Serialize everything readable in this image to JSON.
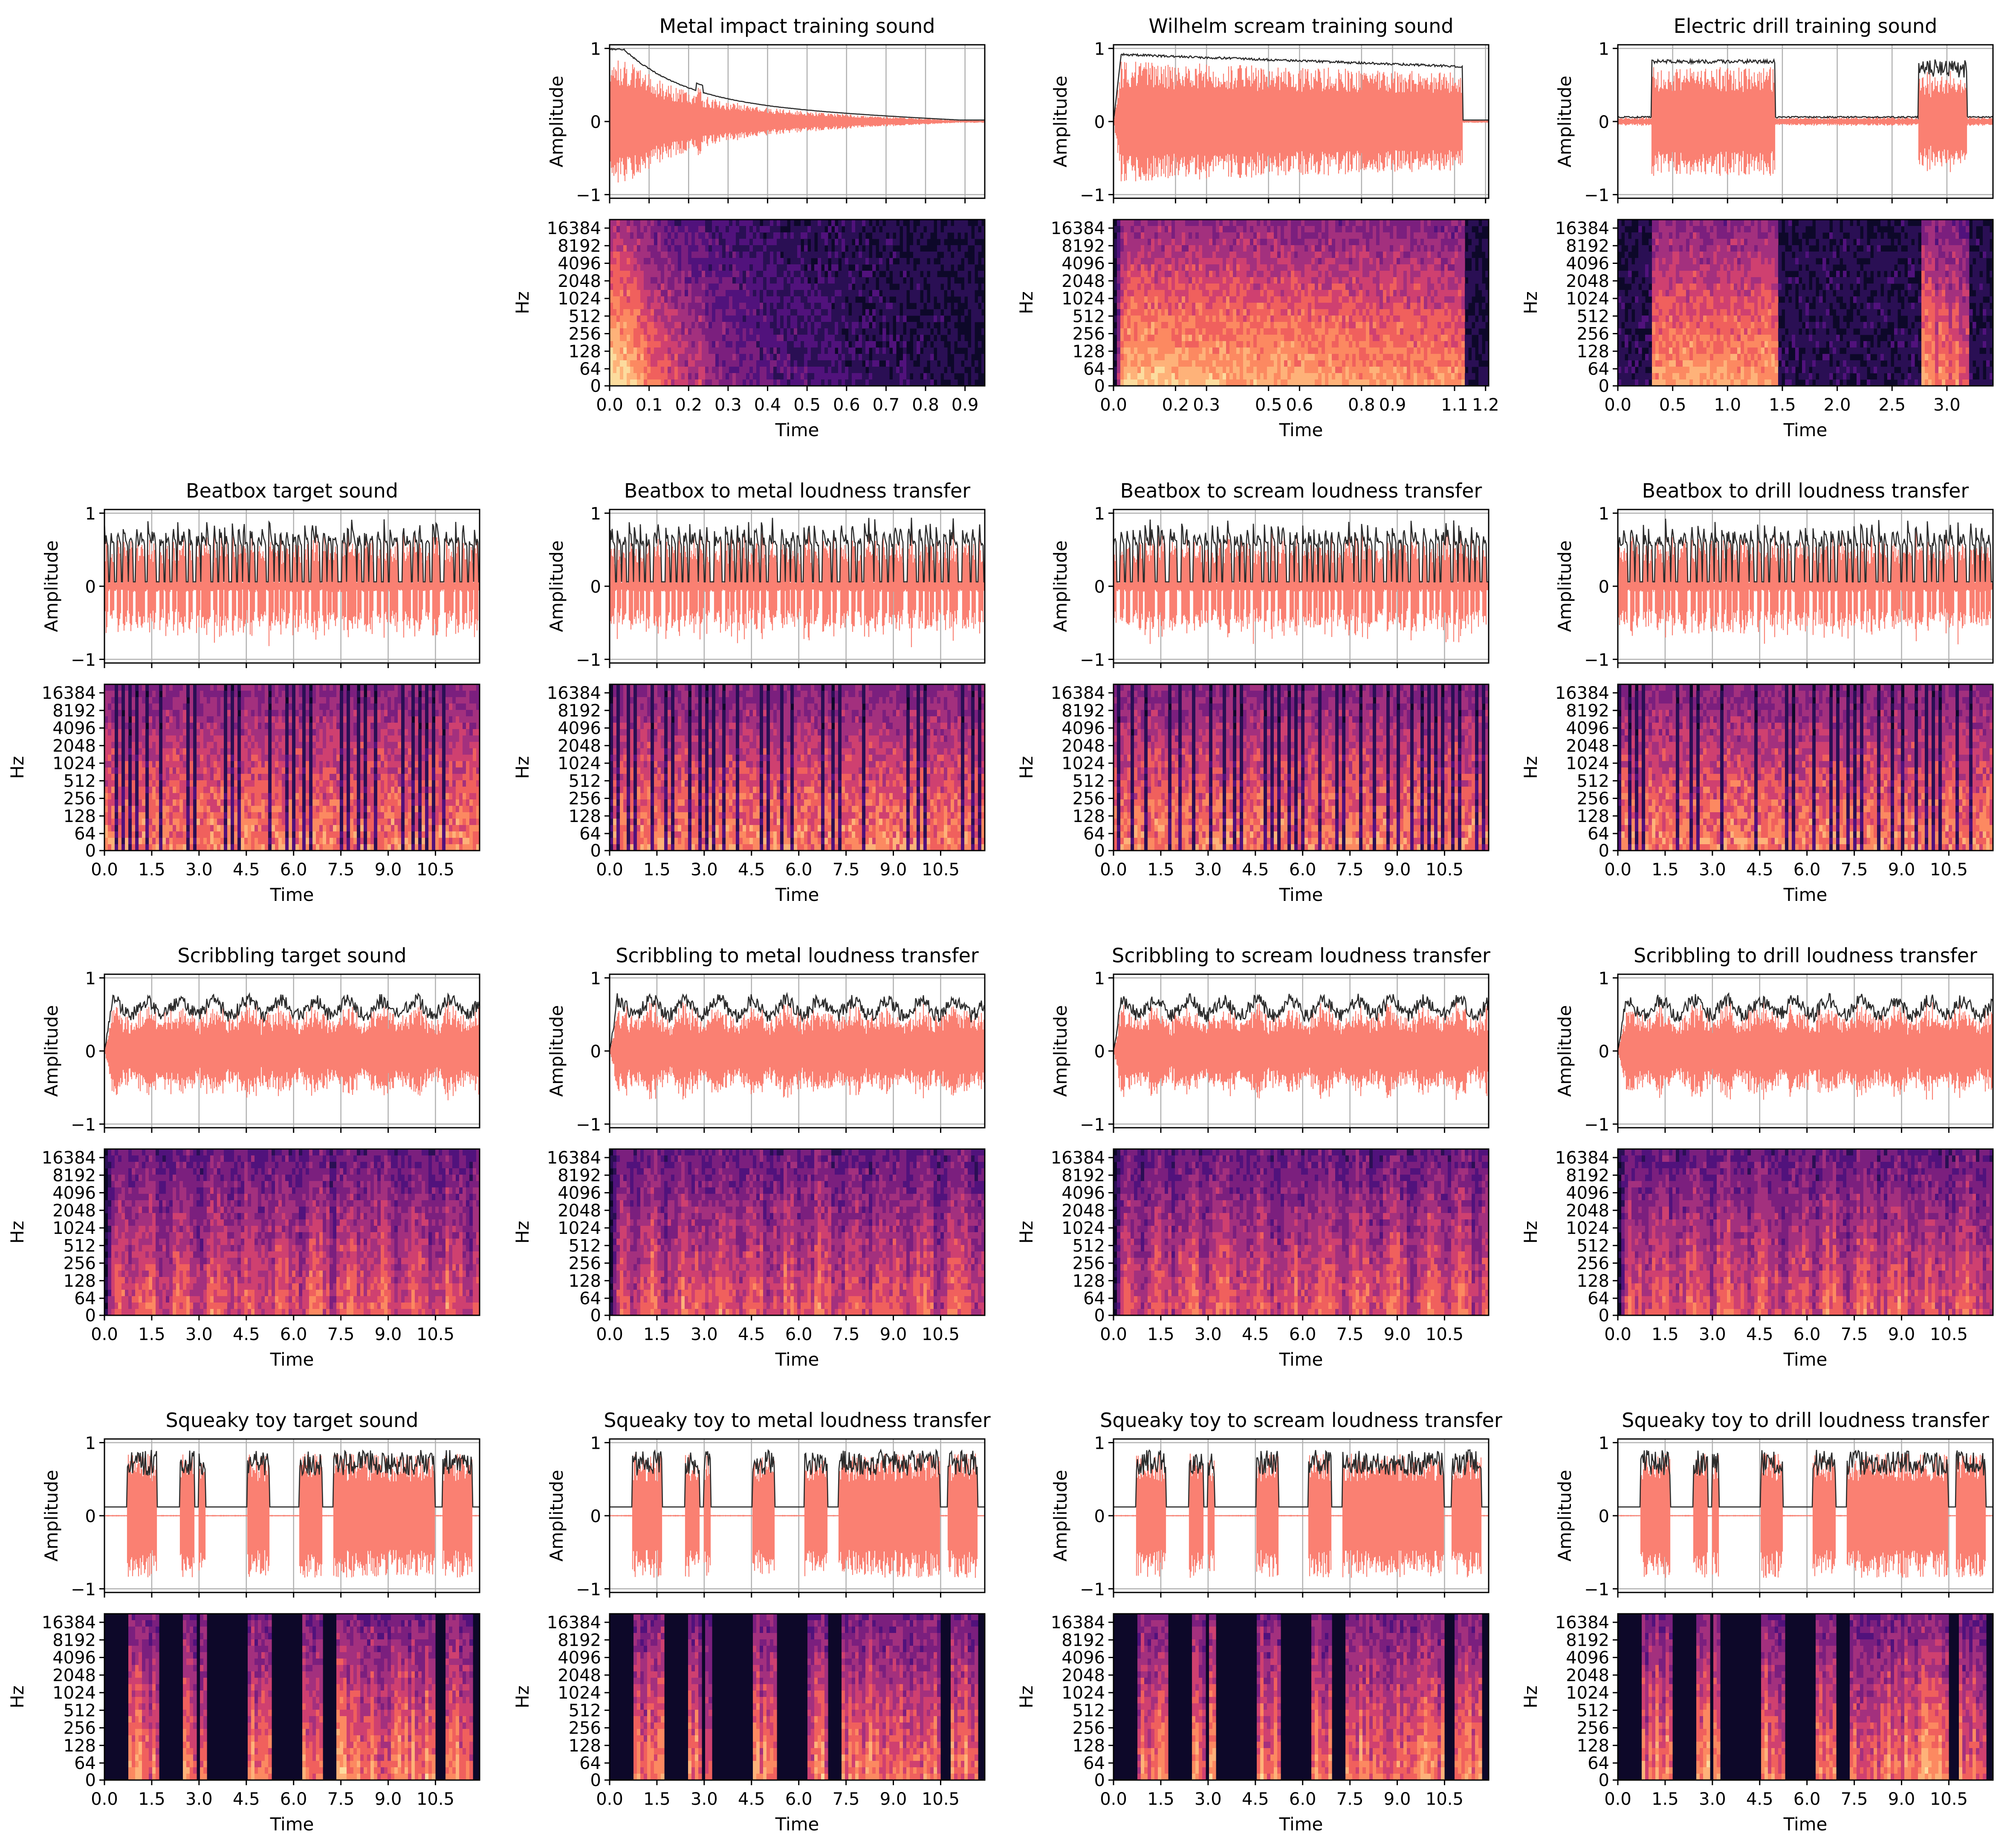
{
  "figure": {
    "waveform_color": "#fa8072",
    "envelope_color": "#2b2b2b",
    "spectrogram_colormap": "magma"
  },
  "chart_data": [
    {
      "title": "Metal impact training sound",
      "type": "line",
      "wave_kind": "metal",
      "duration": 0.95,
      "xticks": [
        "0.0",
        "0.1",
        "0.2",
        "0.3",
        "0.4",
        "0.5",
        "0.6",
        "0.7",
        "0.8",
        "0.9"
      ],
      "ylabel": "Amplitude",
      "yticks": [
        "1",
        "0",
        "−1"
      ],
      "ylim": [
        -1.05,
        1.05
      ],
      "spec_ylabel": "Hz",
      "spec_yticks": [
        "16384",
        "8192",
        "4096",
        "2048",
        "1024",
        "512",
        "256",
        "128",
        "64",
        "0"
      ],
      "xlabel": "Time",
      "grid": true
    },
    {
      "title": "Wilhelm scream training sound",
      "type": "line",
      "wave_kind": "scream",
      "duration": 1.21,
      "xticks": [
        "0.0",
        "0.2",
        "0.3",
        "0.5",
        "0.6",
        "0.8",
        "0.9",
        "1.1",
        "1.2"
      ],
      "ylabel": "Amplitude",
      "yticks": [
        "1",
        "0",
        "−1"
      ],
      "ylim": [
        -1.05,
        1.05
      ],
      "spec_ylabel": "Hz",
      "spec_yticks": [
        "16384",
        "8192",
        "4096",
        "2048",
        "1024",
        "512",
        "256",
        "128",
        "64",
        "0"
      ],
      "xlabel": "Time",
      "grid": true
    },
    {
      "title": "Electric drill training sound",
      "type": "line",
      "wave_kind": "drill",
      "duration": 3.42,
      "xticks": [
        "0.0",
        "0.5",
        "1.0",
        "1.5",
        "2.0",
        "2.5",
        "3.0"
      ],
      "ylabel": "Amplitude",
      "yticks": [
        "1",
        "0",
        "−1"
      ],
      "ylim": [
        -1.05,
        1.05
      ],
      "spec_ylabel": "Hz",
      "spec_yticks": [
        "16384",
        "8192",
        "4096",
        "2048",
        "1024",
        "512",
        "256",
        "128",
        "64",
        "0"
      ],
      "xlabel": "Time",
      "grid": true
    },
    {
      "title": "Beatbox target sound",
      "type": "line",
      "wave_kind": "beatbox",
      "duration": 11.9,
      "xticks": [
        "0.0",
        "1.5",
        "3.0",
        "4.5",
        "6.0",
        "7.5",
        "9.0",
        "10.5"
      ],
      "ylabel": "Amplitude",
      "yticks": [
        "1",
        "0",
        "−1"
      ],
      "ylim": [
        -1.05,
        1.05
      ],
      "spec_ylabel": "Hz",
      "spec_yticks": [
        "16384",
        "8192",
        "4096",
        "2048",
        "1024",
        "512",
        "256",
        "128",
        "64",
        "0"
      ],
      "xlabel": "Time",
      "grid": true
    },
    {
      "title": "Beatbox to metal loudness transfer",
      "type": "line",
      "wave_kind": "beatbox",
      "duration": 11.9,
      "xticks": [
        "0.0",
        "1.5",
        "3.0",
        "4.5",
        "6.0",
        "7.5",
        "9.0",
        "10.5"
      ],
      "ylabel": "Amplitude",
      "yticks": [
        "1",
        "0",
        "−1"
      ],
      "ylim": [
        -1.05,
        1.05
      ],
      "spec_ylabel": "Hz",
      "spec_yticks": [
        "16384",
        "8192",
        "4096",
        "2048",
        "1024",
        "512",
        "256",
        "128",
        "64",
        "0"
      ],
      "xlabel": "Time",
      "grid": true
    },
    {
      "title": "Beatbox to scream loudness transfer",
      "type": "line",
      "wave_kind": "beatbox",
      "duration": 11.9,
      "xticks": [
        "0.0",
        "1.5",
        "3.0",
        "4.5",
        "6.0",
        "7.5",
        "9.0",
        "10.5"
      ],
      "ylabel": "Amplitude",
      "yticks": [
        "1",
        "0",
        "−1"
      ],
      "ylim": [
        -1.05,
        1.05
      ],
      "spec_ylabel": "Hz",
      "spec_yticks": [
        "16384",
        "8192",
        "4096",
        "2048",
        "1024",
        "512",
        "256",
        "128",
        "64",
        "0"
      ],
      "xlabel": "Time",
      "grid": true
    },
    {
      "title": "Beatbox to drill loudness transfer",
      "type": "line",
      "wave_kind": "beatbox",
      "duration": 11.9,
      "xticks": [
        "0.0",
        "1.5",
        "3.0",
        "4.5",
        "6.0",
        "7.5",
        "9.0",
        "10.5"
      ],
      "ylabel": "Amplitude",
      "yticks": [
        "1",
        "0",
        "−1"
      ],
      "ylim": [
        -1.05,
        1.05
      ],
      "spec_ylabel": "Hz",
      "spec_yticks": [
        "16384",
        "8192",
        "4096",
        "2048",
        "1024",
        "512",
        "256",
        "128",
        "64",
        "0"
      ],
      "xlabel": "Time",
      "grid": true
    },
    {
      "title": "Scribbling target sound",
      "type": "line",
      "wave_kind": "scribble",
      "duration": 11.9,
      "xticks": [
        "0.0",
        "1.5",
        "3.0",
        "4.5",
        "6.0",
        "7.5",
        "9.0",
        "10.5"
      ],
      "ylabel": "Amplitude",
      "yticks": [
        "1",
        "0",
        "−1"
      ],
      "ylim": [
        -1.05,
        1.05
      ],
      "spec_ylabel": "Hz",
      "spec_yticks": [
        "16384",
        "8192",
        "4096",
        "2048",
        "1024",
        "512",
        "256",
        "128",
        "64",
        "0"
      ],
      "xlabel": "Time",
      "grid": true
    },
    {
      "title": "Scribbling to metal loudness transfer",
      "type": "line",
      "wave_kind": "scribble",
      "duration": 11.9,
      "xticks": [
        "0.0",
        "1.5",
        "3.0",
        "4.5",
        "6.0",
        "7.5",
        "9.0",
        "10.5"
      ],
      "ylabel": "Amplitude",
      "yticks": [
        "1",
        "0",
        "−1"
      ],
      "ylim": [
        -1.05,
        1.05
      ],
      "spec_ylabel": "Hz",
      "spec_yticks": [
        "16384",
        "8192",
        "4096",
        "2048",
        "1024",
        "512",
        "256",
        "128",
        "64",
        "0"
      ],
      "xlabel": "Time",
      "grid": true
    },
    {
      "title": "Scribbling to scream loudness transfer",
      "type": "line",
      "wave_kind": "scribble",
      "duration": 11.9,
      "xticks": [
        "0.0",
        "1.5",
        "3.0",
        "4.5",
        "6.0",
        "7.5",
        "9.0",
        "10.5"
      ],
      "ylabel": "Amplitude",
      "yticks": [
        "1",
        "0",
        "−1"
      ],
      "ylim": [
        -1.05,
        1.05
      ],
      "spec_ylabel": "Hz",
      "spec_yticks": [
        "16384",
        "8192",
        "4096",
        "2048",
        "1024",
        "512",
        "256",
        "128",
        "64",
        "0"
      ],
      "xlabel": "Time",
      "grid": true
    },
    {
      "title": "Scribbling to drill loudness transfer",
      "type": "line",
      "wave_kind": "scribble",
      "duration": 11.9,
      "xticks": [
        "0.0",
        "1.5",
        "3.0",
        "4.5",
        "6.0",
        "7.5",
        "9.0",
        "10.5"
      ],
      "ylabel": "Amplitude",
      "yticks": [
        "1",
        "0",
        "−1"
      ],
      "ylim": [
        -1.05,
        1.05
      ],
      "spec_ylabel": "Hz",
      "spec_yticks": [
        "16384",
        "8192",
        "4096",
        "2048",
        "1024",
        "512",
        "256",
        "128",
        "64",
        "0"
      ],
      "xlabel": "Time",
      "grid": true
    },
    {
      "title": "Squeaky toy target sound",
      "type": "line",
      "wave_kind": "squeaky",
      "duration": 11.9,
      "xticks": [
        "0.0",
        "1.5",
        "3.0",
        "4.5",
        "6.0",
        "7.5",
        "9.0",
        "10.5"
      ],
      "ylabel": "Amplitude",
      "yticks": [
        "1",
        "0",
        "−1"
      ],
      "ylim": [
        -1.05,
        1.05
      ],
      "spec_ylabel": "Hz",
      "spec_yticks": [
        "16384",
        "8192",
        "4096",
        "2048",
        "1024",
        "512",
        "256",
        "128",
        "64",
        "0"
      ],
      "xlabel": "Time",
      "grid": true
    },
    {
      "title": "Squeaky toy to metal loudness transfer",
      "type": "line",
      "wave_kind": "squeaky",
      "duration": 11.9,
      "xticks": [
        "0.0",
        "1.5",
        "3.0",
        "4.5",
        "6.0",
        "7.5",
        "9.0",
        "10.5"
      ],
      "ylabel": "Amplitude",
      "yticks": [
        "1",
        "0",
        "−1"
      ],
      "ylim": [
        -1.05,
        1.05
      ],
      "spec_ylabel": "Hz",
      "spec_yticks": [
        "16384",
        "8192",
        "4096",
        "2048",
        "1024",
        "512",
        "256",
        "128",
        "64",
        "0"
      ],
      "xlabel": "Time",
      "grid": true
    },
    {
      "title": "Squeaky toy to scream loudness transfer",
      "type": "line",
      "wave_kind": "squeaky",
      "duration": 11.9,
      "xticks": [
        "0.0",
        "1.5",
        "3.0",
        "4.5",
        "6.0",
        "7.5",
        "9.0",
        "10.5"
      ],
      "ylabel": "Amplitude",
      "yticks": [
        "1",
        "0",
        "−1"
      ],
      "ylim": [
        -1.05,
        1.05
      ],
      "spec_ylabel": "Hz",
      "spec_yticks": [
        "16384",
        "8192",
        "4096",
        "2048",
        "1024",
        "512",
        "256",
        "128",
        "64",
        "0"
      ],
      "xlabel": "Time",
      "grid": true
    },
    {
      "title": "Squeaky toy to drill loudness transfer",
      "type": "line",
      "wave_kind": "squeaky",
      "duration": 11.9,
      "xticks": [
        "0.0",
        "1.5",
        "3.0",
        "4.5",
        "6.0",
        "7.5",
        "9.0",
        "10.5"
      ],
      "ylabel": "Amplitude",
      "yticks": [
        "1",
        "0",
        "−1"
      ],
      "ylim": [
        -1.05,
        1.05
      ],
      "spec_ylabel": "Hz",
      "spec_yticks": [
        "16384",
        "8192",
        "4096",
        "2048",
        "1024",
        "512",
        "256",
        "128",
        "64",
        "0"
      ],
      "xlabel": "Time",
      "grid": true
    }
  ]
}
